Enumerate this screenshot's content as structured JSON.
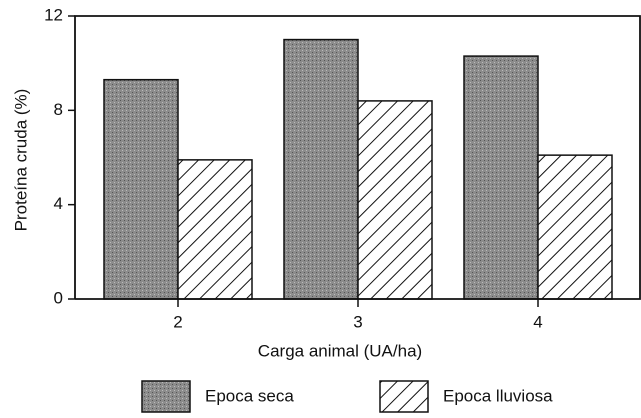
{
  "chart_data": {
    "type": "bar",
    "xlabel": "Carga animal (UA/ha)",
    "ylabel": "Proteína cruda (%)",
    "categories": [
      "2",
      "3",
      "4"
    ],
    "series": [
      {
        "name": "Epoca seca",
        "color": "#8c8c8c",
        "values": [
          9.3,
          11.0,
          10.3
        ]
      },
      {
        "name": "Epoca lluviosa",
        "color": "#ffffff",
        "values": [
          5.9,
          8.4,
          6.1
        ]
      }
    ],
    "ylim": [
      0,
      12
    ],
    "yticks": [
      0,
      4,
      8,
      12
    ]
  }
}
